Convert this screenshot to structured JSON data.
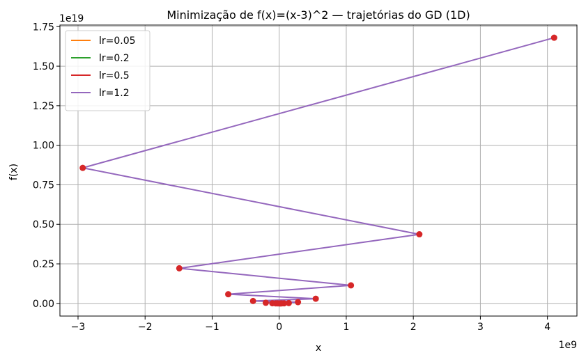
{
  "chart_data": {
    "type": "line",
    "title": "Minimização de f(x)=(x-3)^2 — trajetórias do GD (1D)",
    "xlabel": "x",
    "ylabel": "f(x)",
    "x_offset_label": "1e9",
    "y_offset_label": "1e19",
    "xlim": [
      -3270000000.0,
      4440000000.0
    ],
    "ylim": [
      -8e+17,
      1.76e+19
    ],
    "xticks": [
      -3000000000.0,
      -2000000000.0,
      -1000000000.0,
      0,
      1000000000.0,
      2000000000.0,
      3000000000.0,
      4000000000.0
    ],
    "xtick_labels": [
      "−3",
      "−2",
      "−1",
      "0",
      "1",
      "2",
      "3",
      "4"
    ],
    "yticks": [
      0,
      2.5e+18,
      5e+18,
      7.5e+18,
      1e+19,
      1.25e+19,
      1.5e+19,
      1.75e+19
    ],
    "ytick_labels": [
      "0.00",
      "0.25",
      "0.50",
      "0.75",
      "1.00",
      "1.25",
      "1.50",
      "1.75"
    ],
    "grid": true,
    "legend_position": "top-left",
    "marker_color": "#d62728",
    "series": [
      {
        "name": "lr=0.05",
        "color": "#ff7f0e",
        "x": [],
        "y": []
      },
      {
        "name": "lr=0.2",
        "color": "#2ca02c",
        "x": [],
        "y": []
      },
      {
        "name": "lr=0.5",
        "color": "#d62728",
        "x": [],
        "y": []
      },
      {
        "name": "lr=1.2",
        "color": "#9467bd",
        "x": [
          4100000000.0,
          -2930000000.0,
          2090000000.0,
          -1490000000.0,
          1070000000.0,
          -760000000.0,
          545000000.0,
          -390000000.0,
          280000000.0,
          -200000000.0,
          143000000.0,
          -102000000.0,
          73000000.0,
          -52000000.0,
          37000000.0,
          -26000000.0,
          19000000.0,
          0
        ],
        "y": [
          1.68e+19,
          8.57e+18,
          4.37e+18,
          2.22e+18,
          1.14e+18,
          5.8e+17,
          2.97e+17,
          1.52e+17,
          7.8e+16,
          4e+16,
          2.04e+16,
          1.04e+16,
          5300000000000000.0,
          2700000000000000.0,
          1400000000000000.0,
          700000000000000.0,
          400000000000000.0,
          0
        ]
      }
    ]
  }
}
